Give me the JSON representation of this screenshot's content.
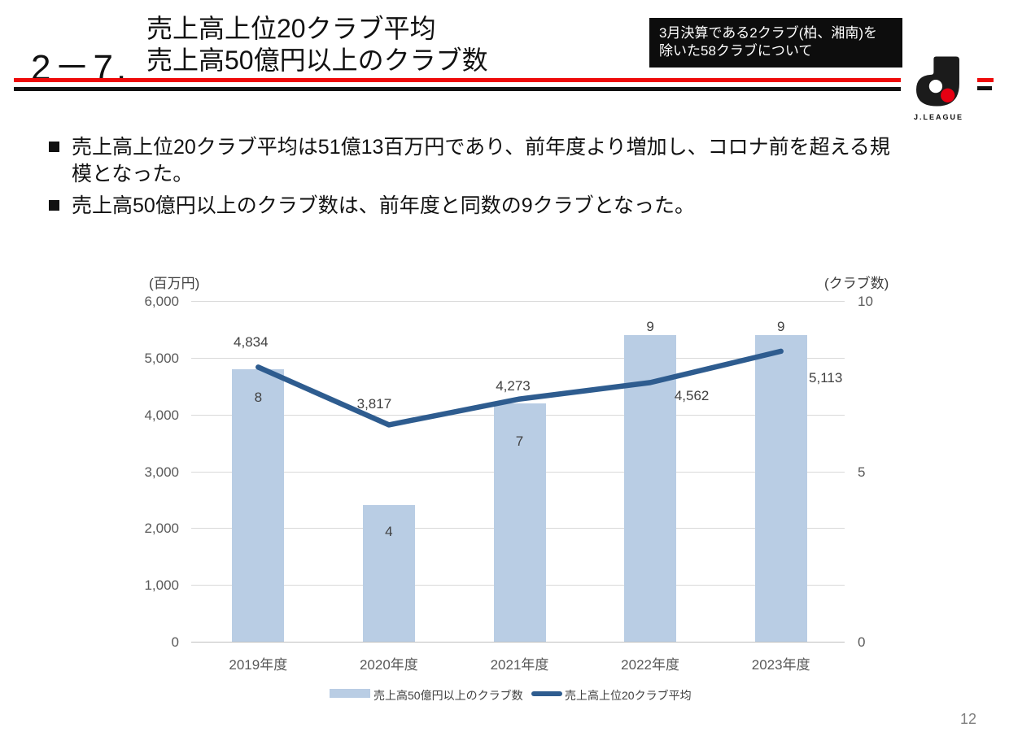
{
  "slide": {
    "section_number": "2－7.",
    "title_lines": [
      "売上高上位20クラブ平均",
      "売上高50億円以上のクラブ数"
    ],
    "note_box": {
      "lines": [
        "3月決算である2クラブ(柏、湘南)を",
        "除いた58クラブについて"
      ]
    },
    "logo": {
      "wordmark": "J.LEAGUE"
    },
    "bullets": [
      {
        "lines": [
          "売上高上位20クラブ平均は51億13百万円であり、前年度より増加し、コロナ前を超える規",
          "模となった。"
        ]
      },
      {
        "lines": [
          "売上高50億円以上のクラブ数は、前年度と同数の9クラブとなった。"
        ]
      }
    ],
    "page_number": "12"
  },
  "chart_data": {
    "type": "combo",
    "categories": [
      "2019年度",
      "2020年度",
      "2021年度",
      "2022年度",
      "2023年度"
    ],
    "series": [
      {
        "name": "売上高50億円以上のクラブ数",
        "type": "bar",
        "axis": "right",
        "values": [
          8,
          4,
          7,
          9,
          9
        ],
        "labels": [
          "8",
          "4",
          "7",
          "9",
          "9"
        ],
        "color": "#b9cde4",
        "label_dy": [
          34,
          32,
          46,
          -11,
          -11
        ]
      },
      {
        "name": "売上高上位20クラブ平均",
        "type": "line",
        "axis": "left",
        "values": [
          4834,
          3817,
          4273,
          4562,
          5113
        ],
        "labels": [
          "4,834",
          "3,817",
          "4,273",
          "4,562",
          "5,113"
        ],
        "color": "#2e5c8f",
        "label_offsets": [
          [
            -9,
            -31
          ],
          [
            -18,
            -26
          ],
          [
            -8,
            -17
          ],
          [
            51,
            16
          ],
          [
            55,
            32
          ]
        ]
      }
    ],
    "left_axis": {
      "unit_label": "(百万円)",
      "min": 0,
      "max": 6000,
      "tick_step": 1000,
      "ticks": [
        "6,000",
        "5,000",
        "4,000",
        "3,000",
        "2,000",
        "1,000",
        "0"
      ]
    },
    "right_axis": {
      "unit_label": "(クラブ数)",
      "min": 0,
      "max": 10,
      "ticks": [
        "10",
        "5",
        "0"
      ],
      "tick_values": [
        10,
        5,
        0
      ]
    },
    "grid": true,
    "legend_position": "bottom"
  }
}
